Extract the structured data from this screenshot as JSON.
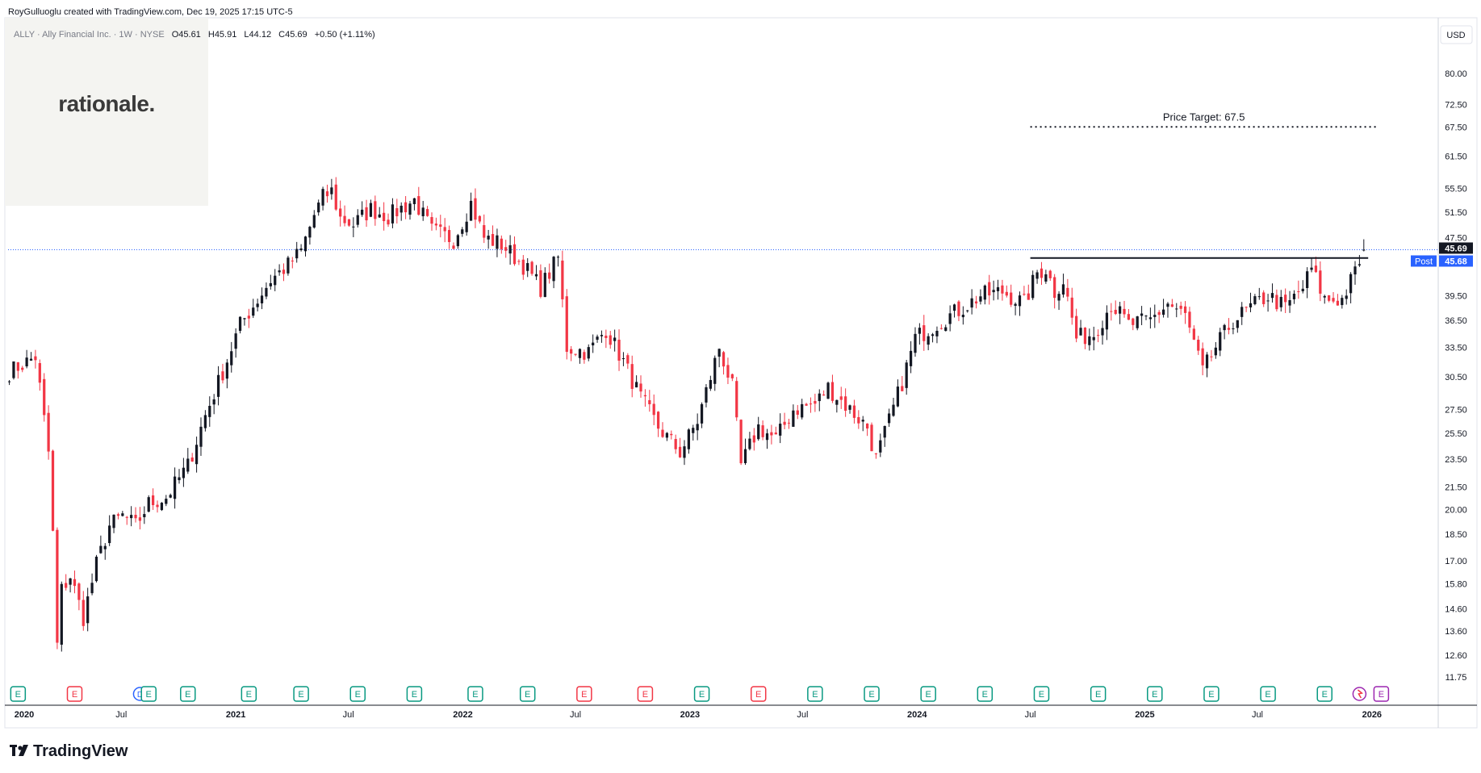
{
  "header": {
    "credit": "RoyGulluoglu created with TradingView.com, Dec 19, 2025 17:15 UTC-5",
    "symbol_line": "ALLY · Ally Financial Inc. · 1W · NYSE",
    "open": "O45.61",
    "high": "H45.91",
    "low": "L44.12",
    "close": "C45.69",
    "change": "+0.50 (+1.11%)"
  },
  "watermark": {
    "text": "rationale."
  },
  "currency_button": "USD",
  "price_tags": {
    "last": "45.69",
    "post_label": "Post",
    "post": "45.68"
  },
  "annotation": {
    "text": "Price Target: 67.5"
  },
  "brand": {
    "text": "TradingView"
  },
  "colors": {
    "up": "#131722",
    "down": "#f23645",
    "earnings": "#089981",
    "earnings_miss": "#f23645",
    "dividend": "#2962ff",
    "grid": "#e0e3eb",
    "axis_text": "#131722",
    "post_tag": "#2962ff",
    "split": "#9c27b0",
    "lastline": "#2962ff"
  },
  "chart_data": {
    "type": "candlestick",
    "title": "ALLY · Ally Financial Inc. · 1W · NYSE",
    "y_scale": "log",
    "ylim": [
      10.8,
      95
    ],
    "xlim": [
      "2020-01-01",
      "2026-04-15"
    ],
    "y_ticks": [
      "80.00",
      "72.50",
      "67.50",
      "61.50",
      "55.50",
      "51.50",
      "47.50",
      "39.50",
      "36.50",
      "33.50",
      "30.50",
      "27.50",
      "25.50",
      "23.50",
      "21.50",
      "20.00",
      "18.50",
      "17.00",
      "15.80",
      "14.60",
      "13.60",
      "12.60",
      "11.75"
    ],
    "x_ticks": [
      {
        "label": "2020",
        "date": "2020-01-01"
      },
      {
        "label": "Jul",
        "date": "2020-07-01"
      },
      {
        "label": "2021",
        "date": "2021-01-01"
      },
      {
        "label": "Jul",
        "date": "2021-07-01"
      },
      {
        "label": "2022",
        "date": "2022-01-01"
      },
      {
        "label": "Jul",
        "date": "2022-07-01"
      },
      {
        "label": "2023",
        "date": "2023-01-01"
      },
      {
        "label": "Jul",
        "date": "2023-07-01"
      },
      {
        "label": "2024",
        "date": "2024-01-01"
      },
      {
        "label": "Jul",
        "date": "2024-07-01"
      },
      {
        "label": "2025",
        "date": "2025-01-01"
      },
      {
        "label": "Jul",
        "date": "2025-07-01"
      },
      {
        "label": "2026",
        "date": "2026-01-01"
      }
    ],
    "path_points": [
      [
        "2020-01-03",
        31.0
      ],
      [
        "2020-02-14",
        32.5
      ],
      [
        "2020-02-21",
        29.5
      ],
      [
        "2020-03-06",
        24.0
      ],
      [
        "2020-03-13",
        18.5
      ],
      [
        "2020-03-20",
        13.0
      ],
      [
        "2020-03-27",
        15.5
      ],
      [
        "2020-04-10",
        16.2
      ],
      [
        "2020-05-01",
        14.2
      ],
      [
        "2020-05-22",
        16.8
      ],
      [
        "2020-06-12",
        19.0
      ],
      [
        "2020-07-03",
        19.6
      ],
      [
        "2020-07-24",
        19.0
      ],
      [
        "2020-08-14",
        20.4
      ],
      [
        "2020-09-11",
        20.8
      ],
      [
        "2020-10-16",
        23.0
      ],
      [
        "2020-11-13",
        27.0
      ],
      [
        "2020-12-11",
        31.0
      ],
      [
        "2021-01-08",
        36.0
      ],
      [
        "2021-02-05",
        39.0
      ],
      [
        "2021-02-26",
        41.5
      ],
      [
        "2021-03-26",
        43.5
      ],
      [
        "2021-04-16",
        45.5
      ],
      [
        "2021-05-07",
        51.0
      ],
      [
        "2021-05-21",
        54.0
      ],
      [
        "2021-06-04",
        55.0
      ],
      [
        "2021-06-18",
        50.5
      ],
      [
        "2021-07-09",
        49.5
      ],
      [
        "2021-08-06",
        52.0
      ],
      [
        "2021-09-03",
        50.8
      ],
      [
        "2021-10-15",
        53.5
      ],
      [
        "2021-11-12",
        48.5
      ],
      [
        "2021-12-17",
        47.2
      ],
      [
        "2022-01-14",
        53.0
      ],
      [
        "2022-02-04",
        47.5
      ],
      [
        "2022-03-04",
        46.5
      ],
      [
        "2022-04-08",
        43.5
      ],
      [
        "2022-05-06",
        40.5
      ],
      [
        "2022-06-03",
        44.5
      ],
      [
        "2022-06-17",
        33.5
      ],
      [
        "2022-07-22",
        33.0
      ],
      [
        "2022-08-19",
        35.5
      ],
      [
        "2022-09-16",
        32.0
      ],
      [
        "2022-10-14",
        28.5
      ],
      [
        "2022-11-11",
        26.0
      ],
      [
        "2022-12-16",
        24.0
      ],
      [
        "2023-01-13",
        26.5
      ],
      [
        "2023-02-17",
        33.5
      ],
      [
        "2023-03-10",
        29.5
      ],
      [
        "2023-03-24",
        23.0
      ],
      [
        "2023-04-21",
        26.0
      ],
      [
        "2023-05-19",
        25.0
      ],
      [
        "2023-06-16",
        27.5
      ],
      [
        "2023-07-21",
        28.0
      ],
      [
        "2023-08-11",
        29.5
      ],
      [
        "2023-09-15",
        27.5
      ],
      [
        "2023-10-13",
        26.0
      ],
      [
        "2023-10-27",
        23.5
      ],
      [
        "2023-11-17",
        26.5
      ],
      [
        "2023-12-08",
        30.0
      ],
      [
        "2023-12-29",
        34.5
      ],
      [
        "2024-02-09",
        36.5
      ],
      [
        "2024-03-15",
        38.0
      ],
      [
        "2024-04-12",
        39.5
      ],
      [
        "2024-05-17",
        40.0
      ],
      [
        "2024-06-21",
        38.5
      ],
      [
        "2024-07-12",
        42.5
      ],
      [
        "2024-07-26",
        43.0
      ],
      [
        "2024-08-09",
        40.0
      ],
      [
        "2024-08-23",
        41.5
      ],
      [
        "2024-09-13",
        34.5
      ],
      [
        "2024-10-11",
        35.0
      ],
      [
        "2024-11-08",
        38.5
      ],
      [
        "2024-12-06",
        36.0
      ],
      [
        "2025-01-10",
        36.5
      ],
      [
        "2025-02-07",
        38.5
      ],
      [
        "2025-03-07",
        37.0
      ],
      [
        "2025-04-04",
        31.0
      ],
      [
        "2025-04-25",
        33.5
      ],
      [
        "2025-05-23",
        36.5
      ],
      [
        "2025-06-20",
        38.0
      ],
      [
        "2025-07-18",
        39.5
      ],
      [
        "2025-08-15",
        38.0
      ],
      [
        "2025-09-12",
        40.5
      ],
      [
        "2025-09-26",
        43.0
      ],
      [
        "2025-10-17",
        39.0
      ],
      [
        "2025-11-14",
        39.0
      ],
      [
        "2025-12-05",
        42.5
      ],
      [
        "2025-12-19",
        45.69
      ]
    ],
    "resistance_level": 44.5,
    "resistance_range": [
      "2024-07-01",
      "2025-12-26"
    ],
    "target": 67.5,
    "target_range": [
      "2024-07-01",
      "2026-01-10"
    ],
    "last_close": 45.69,
    "events": [
      {
        "type": "E",
        "date": "2020-01-17"
      },
      {
        "type": "E",
        "date": "2020-04-17",
        "color": "miss"
      },
      {
        "type": "D",
        "date": "2020-07-31"
      },
      {
        "type": "E",
        "date": "2020-08-14"
      },
      {
        "type": "E",
        "date": "2020-10-16"
      },
      {
        "type": "E",
        "date": "2021-01-22"
      },
      {
        "type": "E",
        "date": "2021-04-16"
      },
      {
        "type": "E",
        "date": "2021-07-16"
      },
      {
        "type": "E",
        "date": "2021-10-15"
      },
      {
        "type": "E",
        "date": "2022-01-21"
      },
      {
        "type": "E",
        "date": "2022-04-15"
      },
      {
        "type": "E",
        "date": "2022-07-15",
        "color": "miss"
      },
      {
        "type": "E",
        "date": "2022-10-21",
        "color": "miss"
      },
      {
        "type": "E",
        "date": "2023-01-20"
      },
      {
        "type": "E",
        "date": "2023-04-21",
        "color": "miss"
      },
      {
        "type": "E",
        "date": "2023-07-21"
      },
      {
        "type": "E",
        "date": "2023-10-20"
      },
      {
        "type": "E",
        "date": "2024-01-19"
      },
      {
        "type": "E",
        "date": "2024-04-19"
      },
      {
        "type": "E",
        "date": "2024-07-19"
      },
      {
        "type": "E",
        "date": "2024-10-18"
      },
      {
        "type": "E",
        "date": "2025-01-17"
      },
      {
        "type": "E",
        "date": "2025-04-18"
      },
      {
        "type": "E",
        "date": "2025-07-18"
      },
      {
        "type": "E",
        "date": "2025-10-17"
      },
      {
        "type": "S",
        "date": "2025-12-12"
      },
      {
        "type": "E",
        "date": "2026-01-16",
        "color": "split"
      }
    ]
  }
}
